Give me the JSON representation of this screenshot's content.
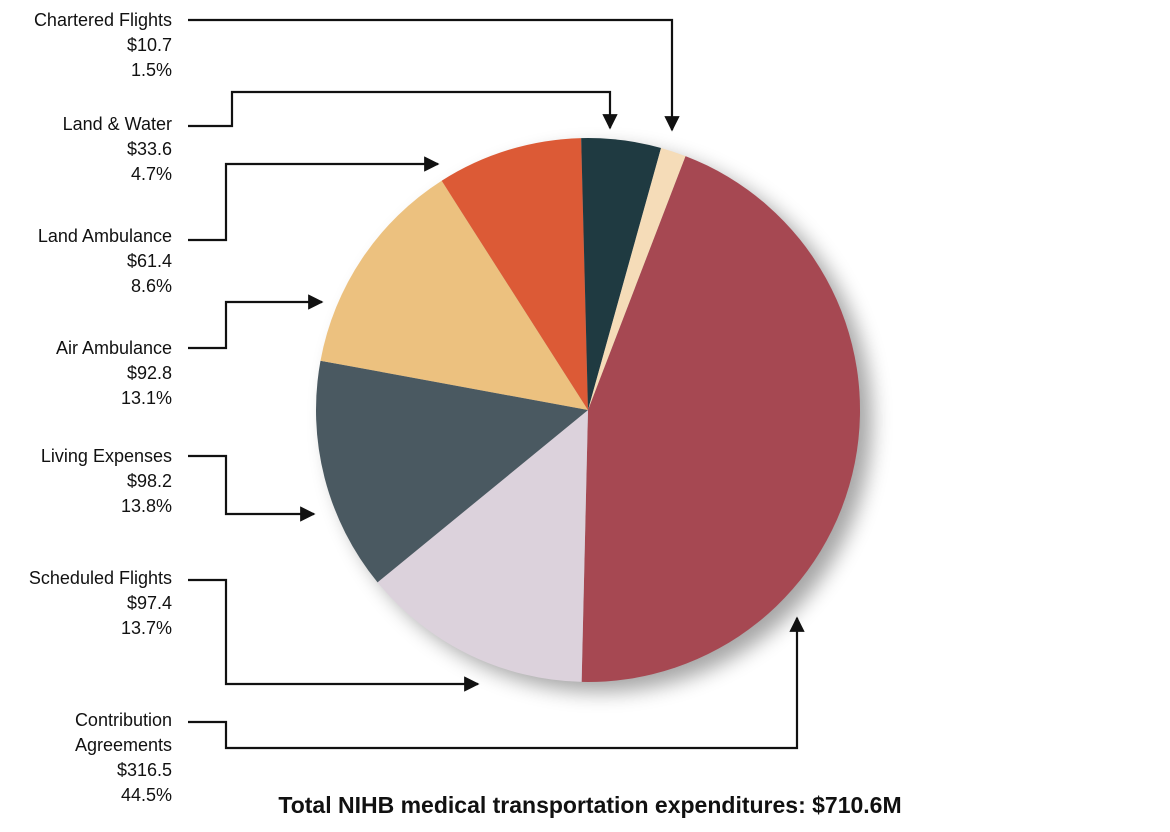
{
  "chart_data": {
    "type": "pie",
    "categories": [
      "Chartered Flights",
      "Land & Water",
      "Land Ambulance",
      "Air Ambulance",
      "Living Expenses",
      "Scheduled Flights",
      "Contribution Agreements"
    ],
    "values": [
      10.7,
      33.6,
      61.4,
      92.8,
      98.2,
      97.4,
      316.5
    ],
    "value_labels": [
      "$10.7",
      "$33.6",
      "$61.4",
      "$92.8",
      "$98.2",
      "$97.4",
      "$316.5"
    ],
    "percents": [
      1.5,
      4.7,
      8.6,
      13.1,
      13.8,
      13.7,
      44.5
    ],
    "percent_labels": [
      "1.5%",
      "4.7%",
      "8.6%",
      "13.1%",
      "13.8%",
      "13.7%",
      "44.5%"
    ],
    "colors": [
      "#f5dcb8",
      "#1f3a41",
      "#dc5a36",
      "#ecc17f",
      "#4a5961",
      "#dcd2dc",
      "#a64852"
    ],
    "footnote": "Total NIHB medical transportation expenditures: $710.6M"
  }
}
